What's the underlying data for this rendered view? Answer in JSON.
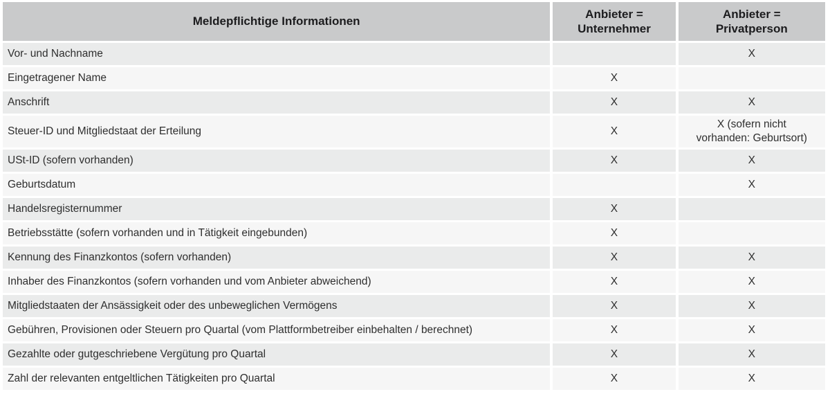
{
  "colors": {
    "header_bg": "#c9cacb",
    "row_dark": "#eaebeb",
    "row_light": "#f6f6f6",
    "text": "#2e2e2e",
    "header_text": "#1c1c1e",
    "background": "#ffffff"
  },
  "chart_data": {
    "type": "table",
    "title": "Meldepflichtige Informationen",
    "legend_position": "none",
    "grid": "white gaps between cells, alternating row shading",
    "columns": [
      "Meldepflichtige Informationen",
      "Anbieter =\nUnternehmer",
      "Anbieter =\nPrivatperson"
    ],
    "rows": [
      {
        "label": "Vor- und Nachname",
        "unternehmer": "",
        "privatperson": "X"
      },
      {
        "label": "Eingetragener Name",
        "unternehmer": "X",
        "privatperson": ""
      },
      {
        "label": "Anschrift",
        "unternehmer": "X",
        "privatperson": "X"
      },
      {
        "label": "Steuer-ID und Mitgliedstaat der Erteilung",
        "unternehmer": "X",
        "privatperson": "X (sofern nicht\nvorhanden: Geburtsort)"
      },
      {
        "label": "USt-ID (sofern vorhanden)",
        "unternehmer": "X",
        "privatperson": "X"
      },
      {
        "label": "Geburtsdatum",
        "unternehmer": "",
        "privatperson": "X"
      },
      {
        "label": "Handelsregisternummer",
        "unternehmer": "X",
        "privatperson": ""
      },
      {
        "label": "Betriebsstätte (sofern vorhanden und in Tätigkeit eingebunden)",
        "unternehmer": "X",
        "privatperson": ""
      },
      {
        "label": "Kennung des Finanzkontos (sofern vorhanden)",
        "unternehmer": "X",
        "privatperson": "X"
      },
      {
        "label": "Inhaber des Finanzkontos (sofern vorhanden und vom Anbieter abweichend)",
        "unternehmer": "X",
        "privatperson": "X"
      },
      {
        "label": "Mitgliedstaaten der Ansässigkeit oder des unbeweglichen Vermögens",
        "unternehmer": "X",
        "privatperson": "X"
      },
      {
        "label": "Gebühren, Provisionen oder Steuern pro Quartal (vom Plattformbetreiber einbehalten / berechnet)",
        "unternehmer": "X",
        "privatperson": "X"
      },
      {
        "label": "Gezahlte oder gutgeschriebene Vergütung pro Quartal",
        "unternehmer": "X",
        "privatperson": "X"
      },
      {
        "label": "Zahl der relevanten entgeltlichen Tätigkeiten pro Quartal",
        "unternehmer": "X",
        "privatperson": "X"
      }
    ]
  }
}
